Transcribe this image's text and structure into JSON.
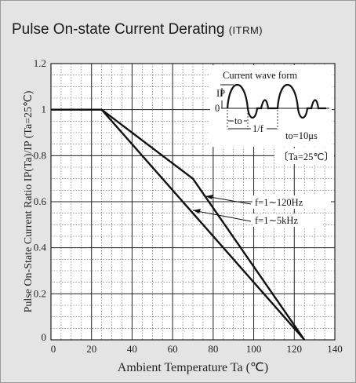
{
  "chart_data": {
    "type": "line",
    "title": "Pulse On-state Current Derating",
    "title_suffix": "(ITRM)",
    "xlabel": "Ambient Temperature  Ta (℃)",
    "ylabel": "Pulse On-State Current Ratio IP(Ta)/IP (Ta=25℃)",
    "xlim": [
      0,
      140
    ],
    "ylim": [
      0,
      1.2
    ],
    "xticks": [
      "0",
      "20",
      "40",
      "60",
      "80",
      "100",
      "120",
      "140"
    ],
    "yticks": [
      "0",
      "0.2",
      "0.4",
      "0.6",
      "0.8",
      "1",
      "1.2"
    ],
    "grid": true,
    "series": [
      {
        "name": "f=1∼120Hz",
        "x": [
          0,
          25,
          70,
          125
        ],
        "y": [
          1.0,
          1.0,
          0.7,
          0.0
        ]
      },
      {
        "name": "f=1∼5kHz",
        "x": [
          0,
          25,
          125
        ],
        "y": [
          1.0,
          1.0,
          0.0
        ]
      }
    ],
    "inset": {
      "title": "Current wave form",
      "ip_label": "IP",
      "zero_label": "0",
      "to_label": "to",
      "period_label": "1/f",
      "to_value": "to=10μs",
      "condition": "Ta=25℃"
    }
  }
}
